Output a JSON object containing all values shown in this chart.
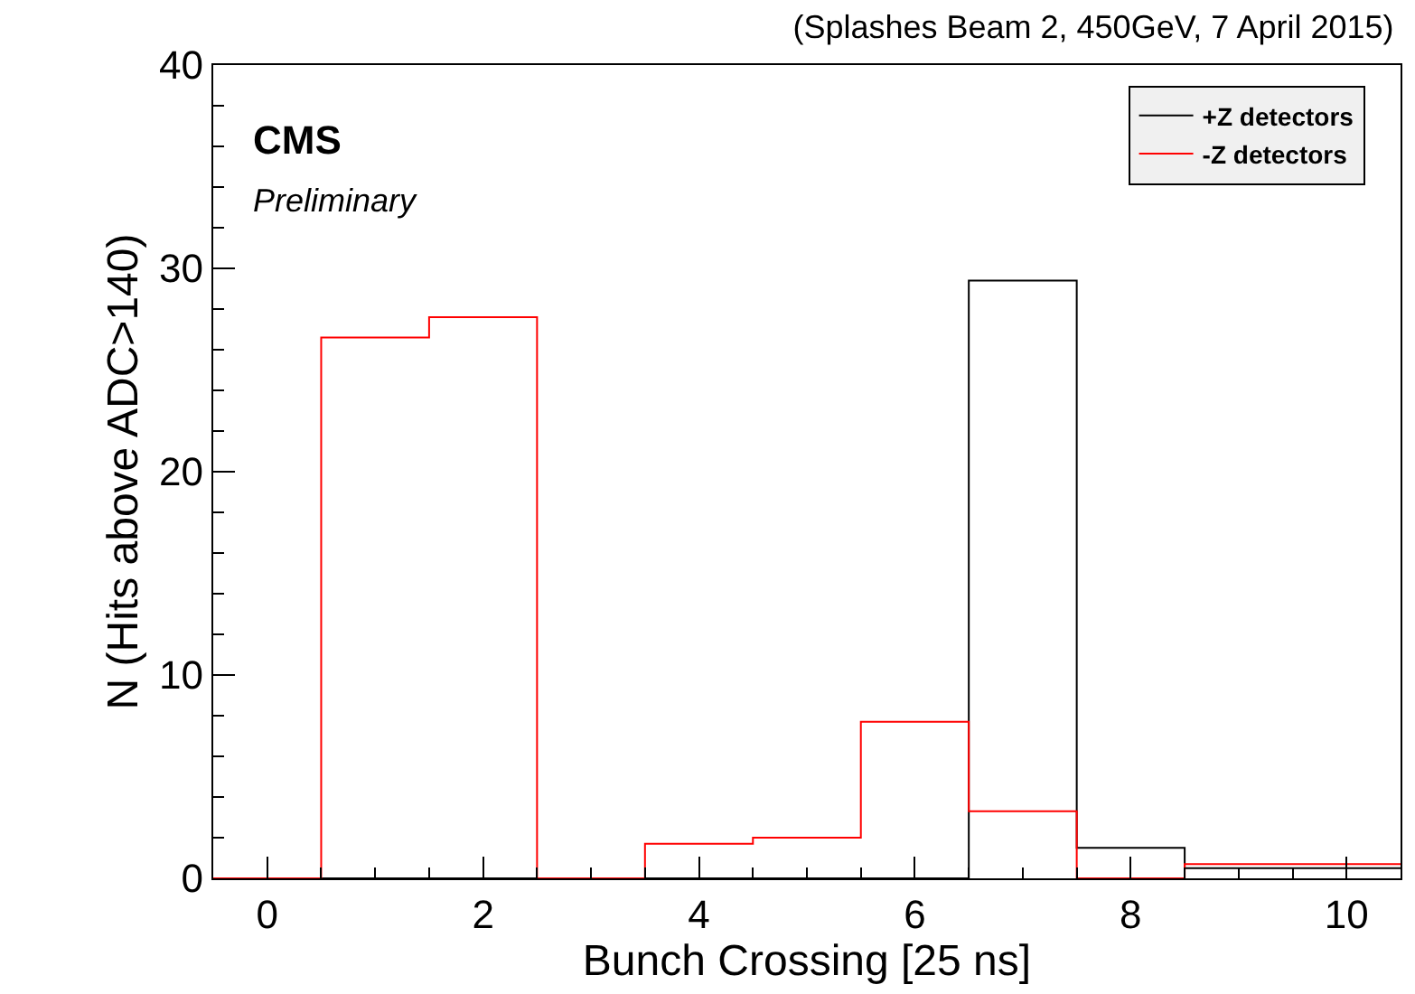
{
  "chart_data": {
    "type": "histogram",
    "title": "(Splashes Beam 2, 450GeV, 7 April 2015)",
    "xlabel": "Bunch Crossing [25 ns]",
    "ylabel": "N (Hits above ADC>140)",
    "annotations": [
      "CMS",
      "Preliminary"
    ],
    "bins": [
      -0.5,
      0.5,
      1.5,
      2.5,
      3.5,
      4.5,
      5.5,
      6.5,
      7.5,
      8.5,
      9.5,
      10.5
    ],
    "series": [
      {
        "name": "+Z detectors",
        "color": "#000000",
        "values": [
          0,
          0,
          0,
          0,
          0,
          0,
          0,
          29.4,
          1.5,
          0.5,
          0.5
        ]
      },
      {
        "name": "-Z detectors",
        "color": "#ff0000",
        "values": [
          0,
          26.6,
          27.6,
          0,
          1.7,
          2.0,
          7.7,
          3.3,
          0,
          0.7,
          0.7
        ]
      }
    ],
    "xlim": [
      -0.5,
      10.5
    ],
    "ylim": [
      0,
      40
    ],
    "xticks": [
      {
        "value": -0.5,
        "label": null
      },
      0,
      {
        "value": 0.5,
        "label": null
      },
      {
        "value": 1,
        "label": null
      },
      {
        "value": 1.5,
        "label": null
      },
      2,
      {
        "value": 2.5,
        "label": null
      },
      {
        "value": 3,
        "label": null
      },
      {
        "value": 3.5,
        "label": null
      },
      4,
      {
        "value": 4.5,
        "label": null
      },
      {
        "value": 5,
        "label": null
      },
      {
        "value": 5.5,
        "label": null
      },
      6,
      {
        "value": 6.5,
        "label": null
      },
      {
        "value": 7,
        "label": null
      },
      {
        "value": 7.5,
        "label": null
      },
      8,
      {
        "value": 8.5,
        "label": null
      },
      {
        "value": 9,
        "label": null
      },
      {
        "value": 9.5,
        "label": null
      },
      10
    ],
    "yticks": [
      0,
      {
        "value": 2,
        "label": null
      },
      {
        "value": 4,
        "label": null
      },
      {
        "value": 6,
        "label": null
      },
      {
        "value": 8,
        "label": null
      },
      10,
      {
        "value": 12,
        "label": null
      },
      {
        "value": 14,
        "label": null
      },
      {
        "value": 16,
        "label": null
      },
      {
        "value": 18,
        "label": null
      },
      20,
      {
        "value": 22,
        "label": null
      },
      {
        "value": 24,
        "label": null
      },
      {
        "value": 26,
        "label": null
      },
      {
        "value": 28,
        "label": null
      },
      30,
      {
        "value": 32,
        "label": null
      },
      {
        "value": 34,
        "label": null
      },
      {
        "value": 36,
        "label": null
      },
      {
        "value": 38,
        "label": null
      },
      40
    ],
    "legend": "top right"
  }
}
